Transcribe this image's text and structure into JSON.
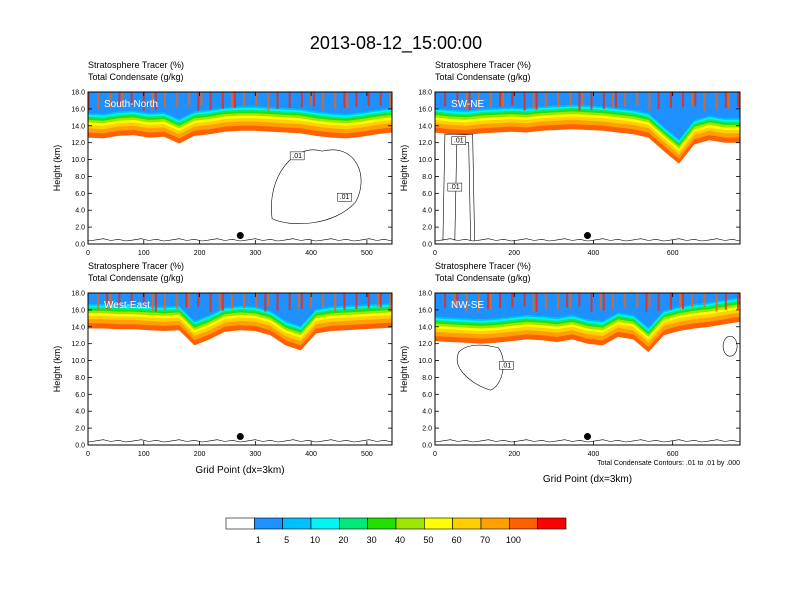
{
  "figure": {
    "title": "2013-08-12_15:00:00",
    "x_axis_label": "Grid Point (dx=3km)",
    "contour_note": "Total Condensate Contours: .01 to .01 by .000"
  },
  "colorbar": {
    "colors": [
      "#ffffff",
      "#1e90ff",
      "#00bfff",
      "#00f5f5",
      "#00e878",
      "#22e000",
      "#9ce600",
      "#ffff00",
      "#ffd000",
      "#ffa000",
      "#ff6000",
      "#ff0000"
    ],
    "labels": [
      "1",
      "5",
      "10",
      "20",
      "30",
      "40",
      "50",
      "60",
      "70",
      "100"
    ]
  },
  "chart_data": [
    {
      "type": "contour-cross-section",
      "panel_label": "South-North",
      "header_line1": "Stratosphere Tracer   (%)",
      "header_line2": "Total Condensate   (g/kg)",
      "ylabel": "Height (km)",
      "xlabel": "",
      "xlim": [
        0,
        545
      ],
      "ylim": [
        0,
        18
      ],
      "x_ticks": [
        "0",
        "100",
        "200",
        "300",
        "400",
        "500"
      ],
      "y_ticks": [
        "0.0",
        "2.0",
        "4.0",
        "6.0",
        "8.0",
        "10.0",
        "12.0",
        "14.0",
        "16.0",
        "18.0"
      ],
      "tracer_base_km": [
        12.6,
        12.5,
        12.8,
        12.9,
        12.6,
        12.7,
        11.9,
        12.8,
        13.0,
        13.3,
        13.4,
        13.4,
        13.3,
        13.2,
        13.1,
        12.8,
        12.6,
        12.5,
        12.7,
        13.0,
        13.2
      ],
      "marker": {
        "x": 273,
        "y": 1.0
      },
      "contour_labels": [
        ".01",
        ".01"
      ]
    },
    {
      "type": "contour-cross-section",
      "panel_label": "SW-NE",
      "header_line1": "Stratosphere Tracer   (%)",
      "header_line2": "Total Condensate   (g/kg)",
      "ylabel": "Height (km)",
      "xlabel": "",
      "xlim": [
        0,
        770
      ],
      "ylim": [
        0,
        18
      ],
      "x_ticks": [
        "0",
        "200",
        "400",
        "600"
      ],
      "y_ticks": [
        "0.0",
        "2.0",
        "4.0",
        "6.0",
        "8.0",
        "10.0",
        "12.0",
        "14.0",
        "16.0",
        "18.0"
      ],
      "tracer_base_km": [
        13.2,
        13.0,
        12.9,
        13.1,
        13.2,
        13.3,
        13.2,
        13.4,
        13.5,
        13.6,
        13.5,
        13.4,
        13.2,
        13.0,
        12.6,
        11.0,
        9.5,
        11.8,
        12.3,
        12.0,
        12.0
      ],
      "marker": {
        "x": 385,
        "y": 1.0
      },
      "contour_labels": [
        ".01",
        ".01"
      ]
    },
    {
      "type": "contour-cross-section",
      "panel_label": "West-East",
      "header_line1": "Stratosphere Tracer   (%)",
      "header_line2": "Total Condensate   (g/kg)",
      "ylabel": "Height (km)",
      "xlabel": "Grid Point (dx=3km)",
      "xlim": [
        0,
        545
      ],
      "ylim": [
        0,
        18
      ],
      "x_ticks": [
        "0",
        "100",
        "200",
        "300",
        "400",
        "500"
      ],
      "y_ticks": [
        "0.0",
        "2.0",
        "4.0",
        "6.0",
        "8.0",
        "10.0",
        "12.0",
        "14.0",
        "16.0",
        "18.0"
      ],
      "tracer_base_km": [
        13.8,
        13.8,
        13.7,
        13.7,
        13.6,
        13.5,
        13.6,
        11.8,
        12.5,
        13.4,
        13.6,
        13.5,
        13.0,
        11.8,
        11.2,
        13.2,
        13.5,
        13.6,
        13.7,
        13.8,
        13.9
      ],
      "marker": {
        "x": 273,
        "y": 1.0
      },
      "contour_labels": []
    },
    {
      "type": "contour-cross-section",
      "panel_label": "NW-SE",
      "header_line1": "Stratosphere Tracer   (%)",
      "header_line2": "Total Condensate   (g/kg)",
      "ylabel": "Height (km)",
      "xlabel": "Grid Point (dx=3km)",
      "xlim": [
        0,
        770
      ],
      "ylim": [
        0,
        18
      ],
      "x_ticks": [
        "0",
        "200",
        "400",
        "600"
      ],
      "y_ticks": [
        "0.0",
        "2.0",
        "4.0",
        "6.0",
        "8.0",
        "10.0",
        "12.0",
        "14.0",
        "16.0",
        "18.0"
      ],
      "tracer_base_km": [
        12.3,
        12.2,
        12.1,
        12.0,
        12.1,
        12.3,
        12.5,
        12.4,
        12.2,
        12.5,
        12.0,
        11.8,
        12.8,
        12.5,
        11.0,
        13.0,
        13.5,
        13.8,
        14.0,
        14.3,
        14.6
      ],
      "marker": {
        "x": 385,
        "y": 1.0
      },
      "contour_labels": [
        ".01"
      ]
    }
  ]
}
